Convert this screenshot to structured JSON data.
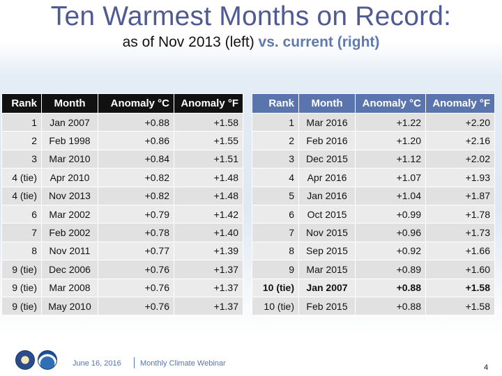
{
  "slide": {
    "title": "Ten Warmest Months on Record:",
    "subtitle_main": "as of Nov 2013 (left) ",
    "subtitle_accent": "vs. current (right)"
  },
  "table_left": {
    "headers": [
      "Rank",
      "Month",
      "Anomaly °C",
      "Anomaly °F"
    ],
    "rows": [
      [
        "1",
        "Jan 2007",
        "+0.88",
        "+1.58"
      ],
      [
        "2",
        "Feb 1998",
        "+0.86",
        "+1.55"
      ],
      [
        "3",
        "Mar 2010",
        "+0.84",
        "+1.51"
      ],
      [
        "4 (tie)",
        "Apr 2010",
        "+0.82",
        "+1.48"
      ],
      [
        "4 (tie)",
        "Nov 2013",
        "+0.82",
        "+1.48"
      ],
      [
        "6",
        "Mar 2002",
        "+0.79",
        "+1.42"
      ],
      [
        "7",
        "Feb 2002",
        "+0.78",
        "+1.40"
      ],
      [
        "8",
        "Nov 2011",
        "+0.77",
        "+1.39"
      ],
      [
        "9 (tie)",
        "Dec 2006",
        "+0.76",
        "+1.37"
      ],
      [
        "9 (tie)",
        "Mar 2008",
        "+0.76",
        "+1.37"
      ],
      [
        "9 (tie)",
        "May 2010",
        "+0.76",
        "+1.37"
      ]
    ]
  },
  "table_right": {
    "headers": [
      "Rank",
      "Month",
      "Anomaly °C",
      "Anomaly °F"
    ],
    "rows": [
      [
        "1",
        "Mar 2016",
        "+1.22",
        "+2.20"
      ],
      [
        "2",
        "Feb 2016",
        "+1.20",
        "+2.16"
      ],
      [
        "3",
        "Dec 2015",
        "+1.12",
        "+2.02"
      ],
      [
        "4",
        "Apr 2016",
        "+1.07",
        "+1.93"
      ],
      [
        "5",
        "Jan 2016",
        "+1.04",
        "+1.87"
      ],
      [
        "6",
        "Oct 2015",
        "+0.99",
        "+1.78"
      ],
      [
        "7",
        "Nov 2015",
        "+0.96",
        "+1.73"
      ],
      [
        "8",
        "Sep 2015",
        "+0.92",
        "+1.66"
      ],
      [
        "9",
        "Mar 2015",
        "+0.89",
        "+1.60"
      ],
      [
        "10 (tie)",
        "Jan 2007",
        "+0.88",
        "+1.58"
      ],
      [
        "10 (tie)",
        "Feb 2015",
        "+0.88",
        "+1.58"
      ]
    ],
    "bold_row_index": 9
  },
  "footer": {
    "date": "June 16, 2016",
    "webinar": "Monthly Climate Webinar",
    "page_number": "4",
    "logos": [
      "commerce-seal-icon",
      "noaa-logo-icon"
    ]
  },
  "colors": {
    "title": "#4f5a94",
    "accent": "#5e79ad",
    "left_header_bg": "#111111",
    "right_header_bg": "#5a74ad"
  }
}
